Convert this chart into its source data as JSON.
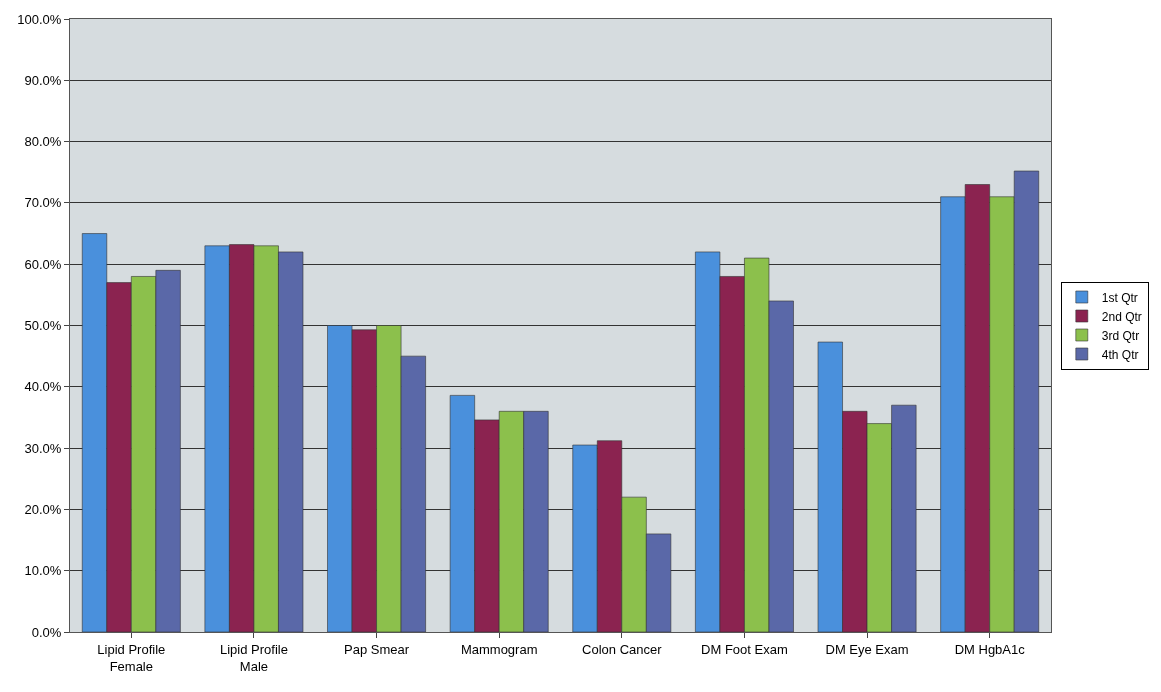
{
  "chart_data": {
    "type": "bar",
    "categories": [
      "Lipid Profile\nFemale",
      "Lipid Profile\nMale",
      "Pap Smear",
      "Mammogram",
      "Colon Cancer",
      "DM Foot Exam",
      "DM Eye Exam",
      "DM HgbA1c"
    ],
    "series": [
      {
        "name": "1st Qtr",
        "color": "#4a90dc",
        "values": [
          65,
          63,
          50,
          38.6,
          30.5,
          62,
          47.3,
          71
        ]
      },
      {
        "name": "2nd Qtr",
        "color": "#8b2350",
        "values": [
          57,
          63.2,
          49.3,
          34.6,
          31.2,
          58,
          36,
          73
        ]
      },
      {
        "name": "3rd Qtr",
        "color": "#8cc04c",
        "values": [
          58,
          63,
          50,
          36,
          22,
          61,
          34,
          71
        ]
      },
      {
        "name": "4th Qtr",
        "color": "#5a68a8",
        "values": [
          59,
          62,
          45,
          36,
          16,
          54,
          37,
          75.2
        ]
      }
    ],
    "ylim": [
      0,
      100
    ],
    "yticks": [
      {
        "value": 0,
        "label": "0.0%"
      },
      {
        "value": 10,
        "label": "10.0%"
      },
      {
        "value": 20,
        "label": "20.0%"
      },
      {
        "value": 30,
        "label": "30.0%"
      },
      {
        "value": 40,
        "label": "40.0%"
      },
      {
        "value": 50,
        "label": "50.0%"
      },
      {
        "value": 60,
        "label": "60.0%"
      },
      {
        "value": 70,
        "label": "70.0%"
      },
      {
        "value": 80,
        "label": "80.0%"
      },
      {
        "value": 90,
        "label": "90.0%"
      },
      {
        "value": 100,
        "label": "100.0%"
      }
    ],
    "grid": "y",
    "legend": "right"
  }
}
